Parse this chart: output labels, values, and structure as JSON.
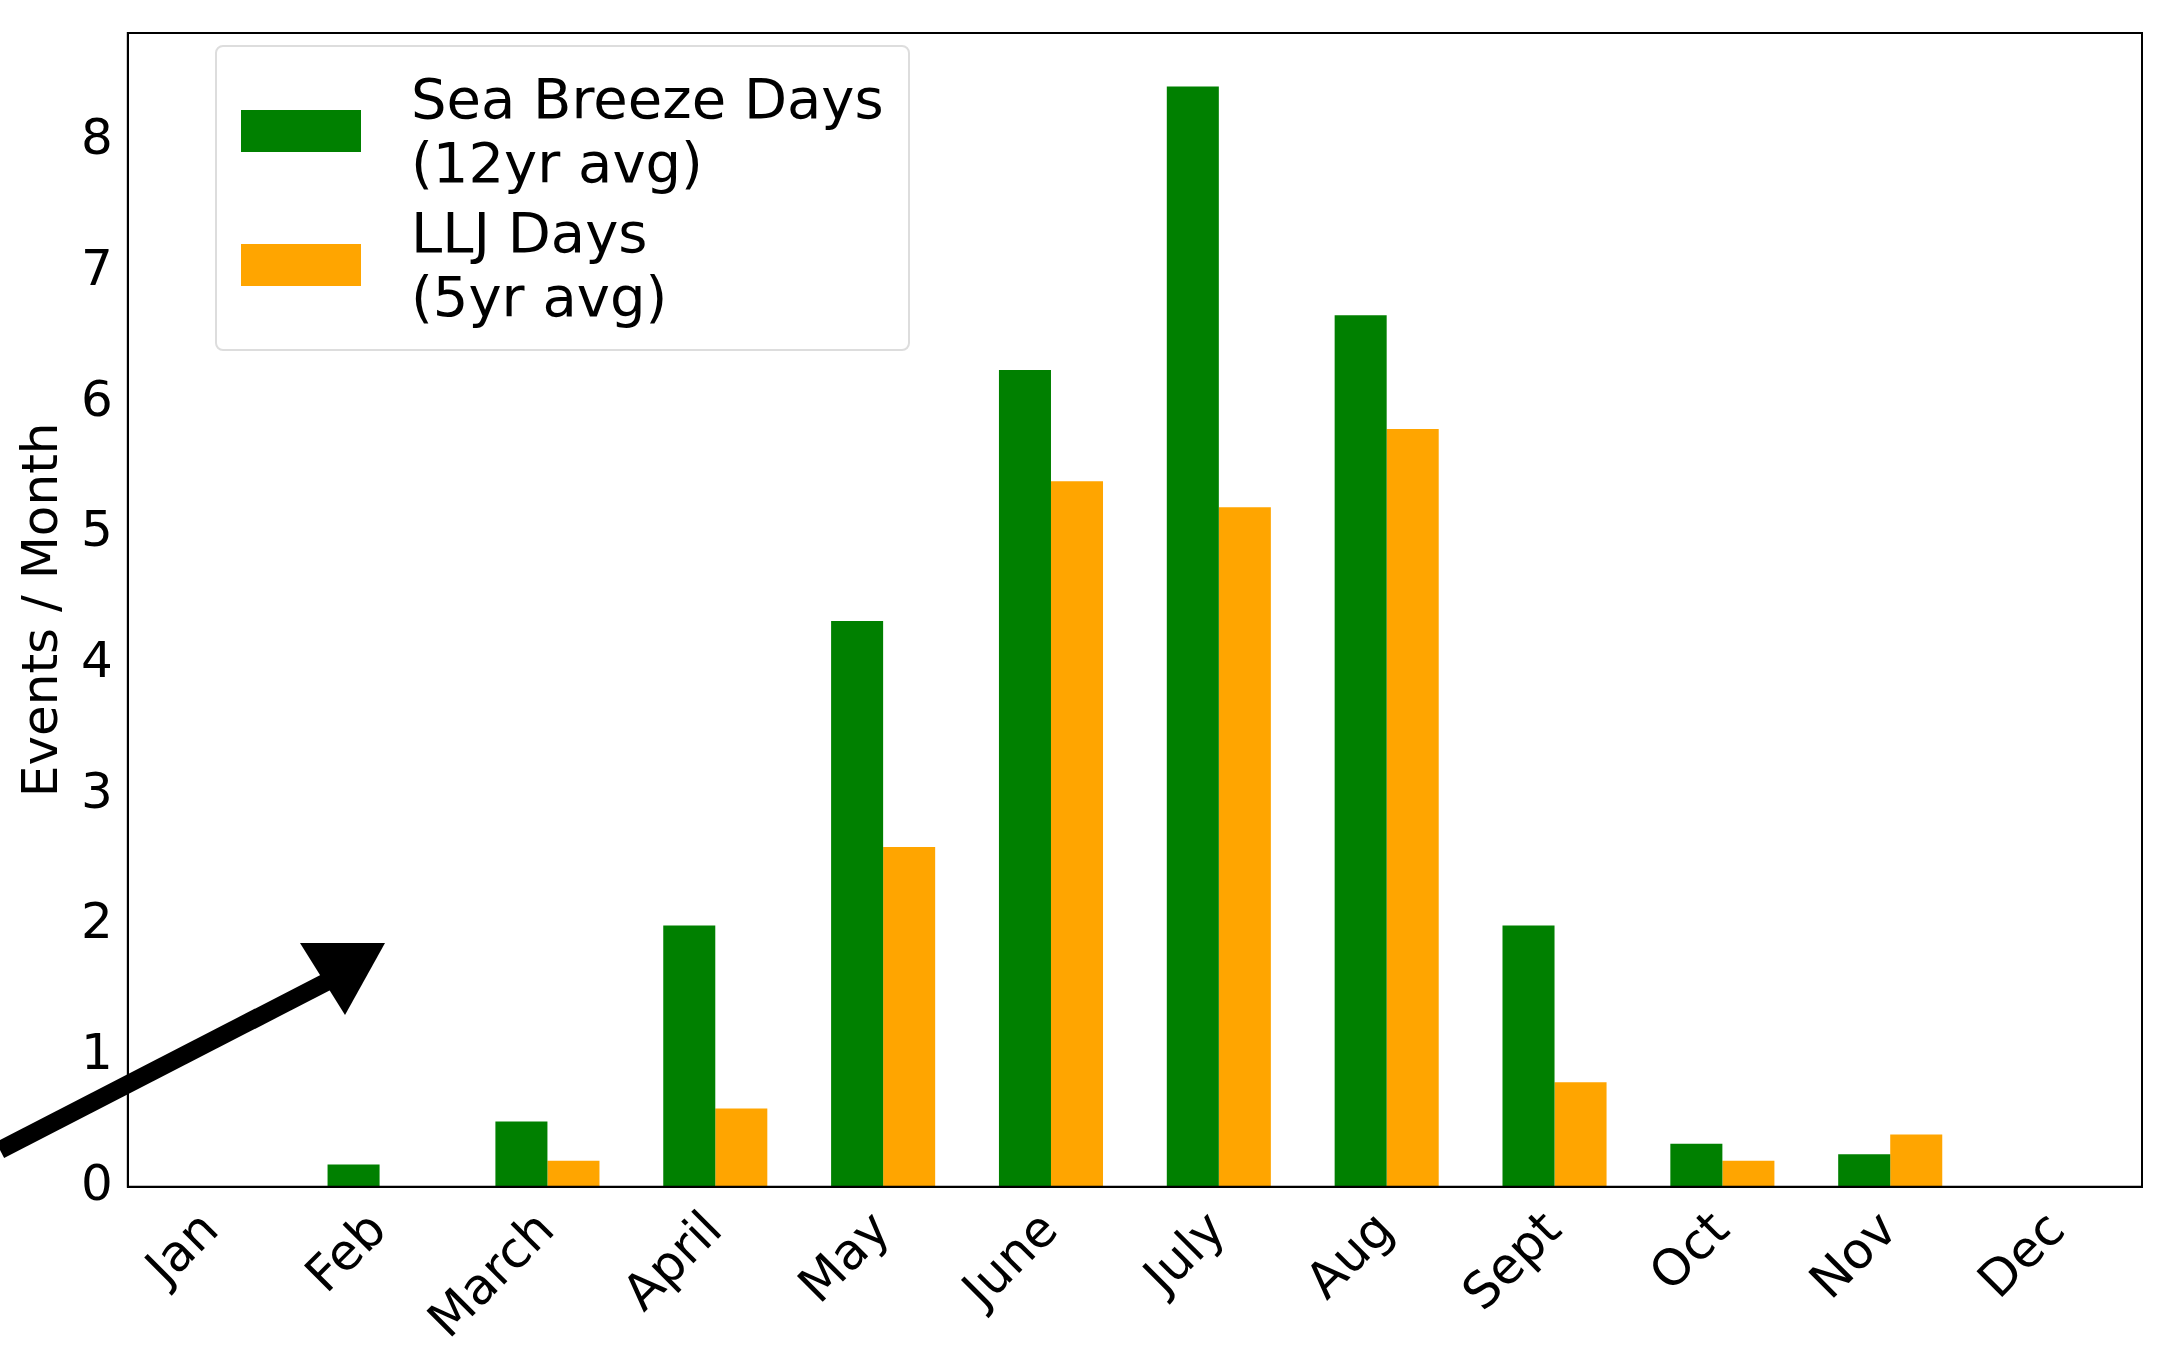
{
  "chart_data": {
    "type": "bar",
    "ylabel": "Events / Month",
    "categories": [
      "Jan",
      "Feb",
      "March",
      "April",
      "May",
      "June",
      "July",
      "Aug",
      "Sept",
      "Oct",
      "Nov",
      "Dec"
    ],
    "series": [
      {
        "name": "Sea Breeze Days\n(12yr avg)",
        "color": "#008000",
        "values": [
          0,
          0.17,
          0.5,
          2.0,
          4.33,
          6.25,
          8.42,
          6.67,
          2.0,
          0.33,
          0.25,
          0
        ]
      },
      {
        "name": "LLJ Days\n(5yr avg)",
        "color": "#ffa500",
        "values": [
          0,
          0,
          0.2,
          0.6,
          2.6,
          5.4,
          5.2,
          5.8,
          0.8,
          0.2,
          0.4,
          0
        ]
      }
    ],
    "ylim": [
      0,
      8.83
    ],
    "yticks": [
      0,
      1,
      2,
      3,
      4,
      5,
      6,
      7,
      8
    ],
    "grid": false,
    "legend": "top left"
  }
}
